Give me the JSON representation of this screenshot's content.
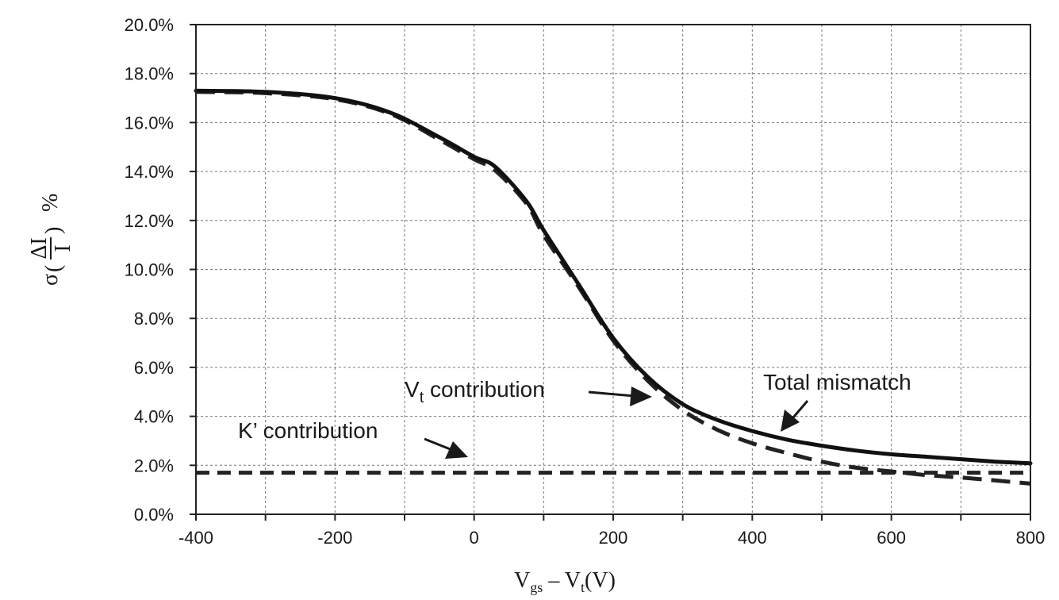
{
  "chart_data": {
    "type": "line",
    "title": "",
    "xlabel": {
      "full": "Vgs – Vt(V)",
      "main1": "V",
      "sub1": "gs",
      "sep": " – V",
      "sub2": "t",
      "tail": "(V)"
    },
    "ylabel": {
      "full": "σ(ΔI/I) %",
      "sigma": "σ",
      "numerator": "ΔI",
      "denominator": "I",
      "unit": "%"
    },
    "xlim": [
      -400,
      800
    ],
    "ylim": [
      0,
      20
    ],
    "x_ticks": [
      -400,
      -200,
      0,
      200,
      400,
      600,
      800
    ],
    "x_tick_labels": [
      "-400",
      "-200",
      "0",
      "200",
      "400",
      "600",
      "800"
    ],
    "y_ticks": [
      0,
      2,
      4,
      6,
      8,
      10,
      12,
      14,
      16,
      18,
      20
    ],
    "y_tick_labels": [
      "0.0%",
      "2.0%",
      "4.0%",
      "6.0%",
      "8.0%",
      "10.0%",
      "12.0%",
      "14.0%",
      "16.0%",
      "18.0%",
      "20.0%"
    ],
    "grid": true,
    "series": [
      {
        "name": "Total mismatch",
        "style": "solid",
        "x": [
          -400,
          -300,
          -200,
          -120,
          -50,
          0,
          30,
          75,
          100,
          150,
          200,
          250,
          300,
          350,
          400,
          450,
          500,
          550,
          600,
          650,
          700,
          750,
          800
        ],
        "values": [
          17.3,
          17.25,
          17.0,
          16.4,
          15.4,
          14.6,
          14.2,
          12.8,
          11.6,
          9.4,
          7.2,
          5.6,
          4.5,
          3.85,
          3.4,
          3.05,
          2.8,
          2.6,
          2.45,
          2.35,
          2.25,
          2.15,
          2.08
        ]
      },
      {
        "name": "Vt contribution",
        "style": "dashed",
        "x": [
          -400,
          -300,
          -200,
          -120,
          -50,
          0,
          30,
          75,
          100,
          150,
          200,
          250,
          300,
          350,
          400,
          450,
          500,
          550,
          600,
          650,
          700,
          750,
          800
        ],
        "values": [
          17.25,
          17.2,
          16.95,
          16.35,
          15.3,
          14.5,
          14.05,
          12.7,
          11.4,
          9.3,
          7.1,
          5.45,
          4.25,
          3.45,
          2.9,
          2.5,
          2.15,
          1.9,
          1.75,
          1.6,
          1.5,
          1.38,
          1.25
        ]
      },
      {
        "name": "K' contribution",
        "style": "dashed",
        "x": [
          -400,
          800
        ],
        "values": [
          1.7,
          1.7
        ]
      }
    ],
    "annotations": [
      {
        "id": "vt",
        "main": "V",
        "sub": "t",
        "rest": " contribution"
      },
      {
        "id": "total",
        "text": "Total mismatch"
      },
      {
        "id": "kprime",
        "text": "K’ contribution"
      }
    ]
  }
}
